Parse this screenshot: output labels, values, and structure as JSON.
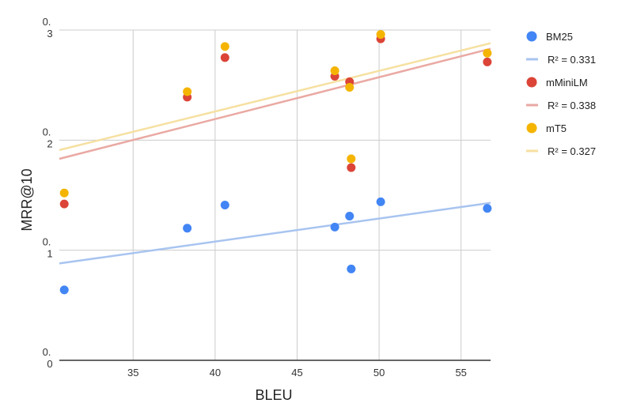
{
  "chart_data": {
    "type": "scatter",
    "title": "",
    "xlabel": "BLEU",
    "ylabel": "MRR@10",
    "xlim": [
      30.5,
      56.8
    ],
    "ylim": [
      0.0,
      0.3
    ],
    "x_ticks": [
      {
        "value": 35,
        "label": "35"
      },
      {
        "value": 40,
        "label": "40"
      },
      {
        "value": 45,
        "label": "45"
      },
      {
        "value": 50,
        "label": "50"
      },
      {
        "value": 55,
        "label": "55"
      }
    ],
    "y_ticks": [
      {
        "value": 0.0,
        "line1": "0.",
        "line2": "0"
      },
      {
        "value": 0.1,
        "line1": "0.",
        "line2": "1"
      },
      {
        "value": 0.2,
        "line1": "0.",
        "line2": "2"
      },
      {
        "value": 0.3,
        "line1": "0.",
        "line2": "3"
      }
    ],
    "grid": true,
    "legend_position": "right",
    "series": [
      {
        "name": "BM25",
        "color": "#4285F4",
        "trend_color": "#A8C4F0",
        "trend_label": "R² = 0.331",
        "x": [
          30.8,
          38.3,
          40.6,
          47.3,
          48.2,
          48.3,
          50.1,
          56.6
        ],
        "y": [
          0.064,
          0.12,
          0.141,
          0.121,
          0.131,
          0.083,
          0.144,
          0.138
        ],
        "trend": [
          0.088,
          0.143
        ]
      },
      {
        "name": "mMiniLM",
        "color": "#DB4437",
        "trend_color": "#EAA9A3",
        "trend_label": "R² = 0.338",
        "x": [
          30.8,
          38.3,
          40.6,
          47.3,
          48.2,
          48.3,
          50.1,
          56.6
        ],
        "y": [
          0.142,
          0.239,
          0.275,
          0.258,
          0.253,
          0.175,
          0.292,
          0.271
        ],
        "trend": [
          0.183,
          0.283
        ]
      },
      {
        "name": "mT5",
        "color": "#F4B400",
        "trend_color": "#F6E0A0",
        "trend_label": "R² = 0.327",
        "x": [
          30.8,
          38.3,
          40.6,
          47.3,
          48.2,
          48.3,
          50.1,
          56.6
        ],
        "y": [
          0.152,
          0.244,
          0.285,
          0.263,
          0.248,
          0.183,
          0.296,
          0.279
        ],
        "trend": [
          0.191,
          0.288
        ]
      }
    ]
  }
}
